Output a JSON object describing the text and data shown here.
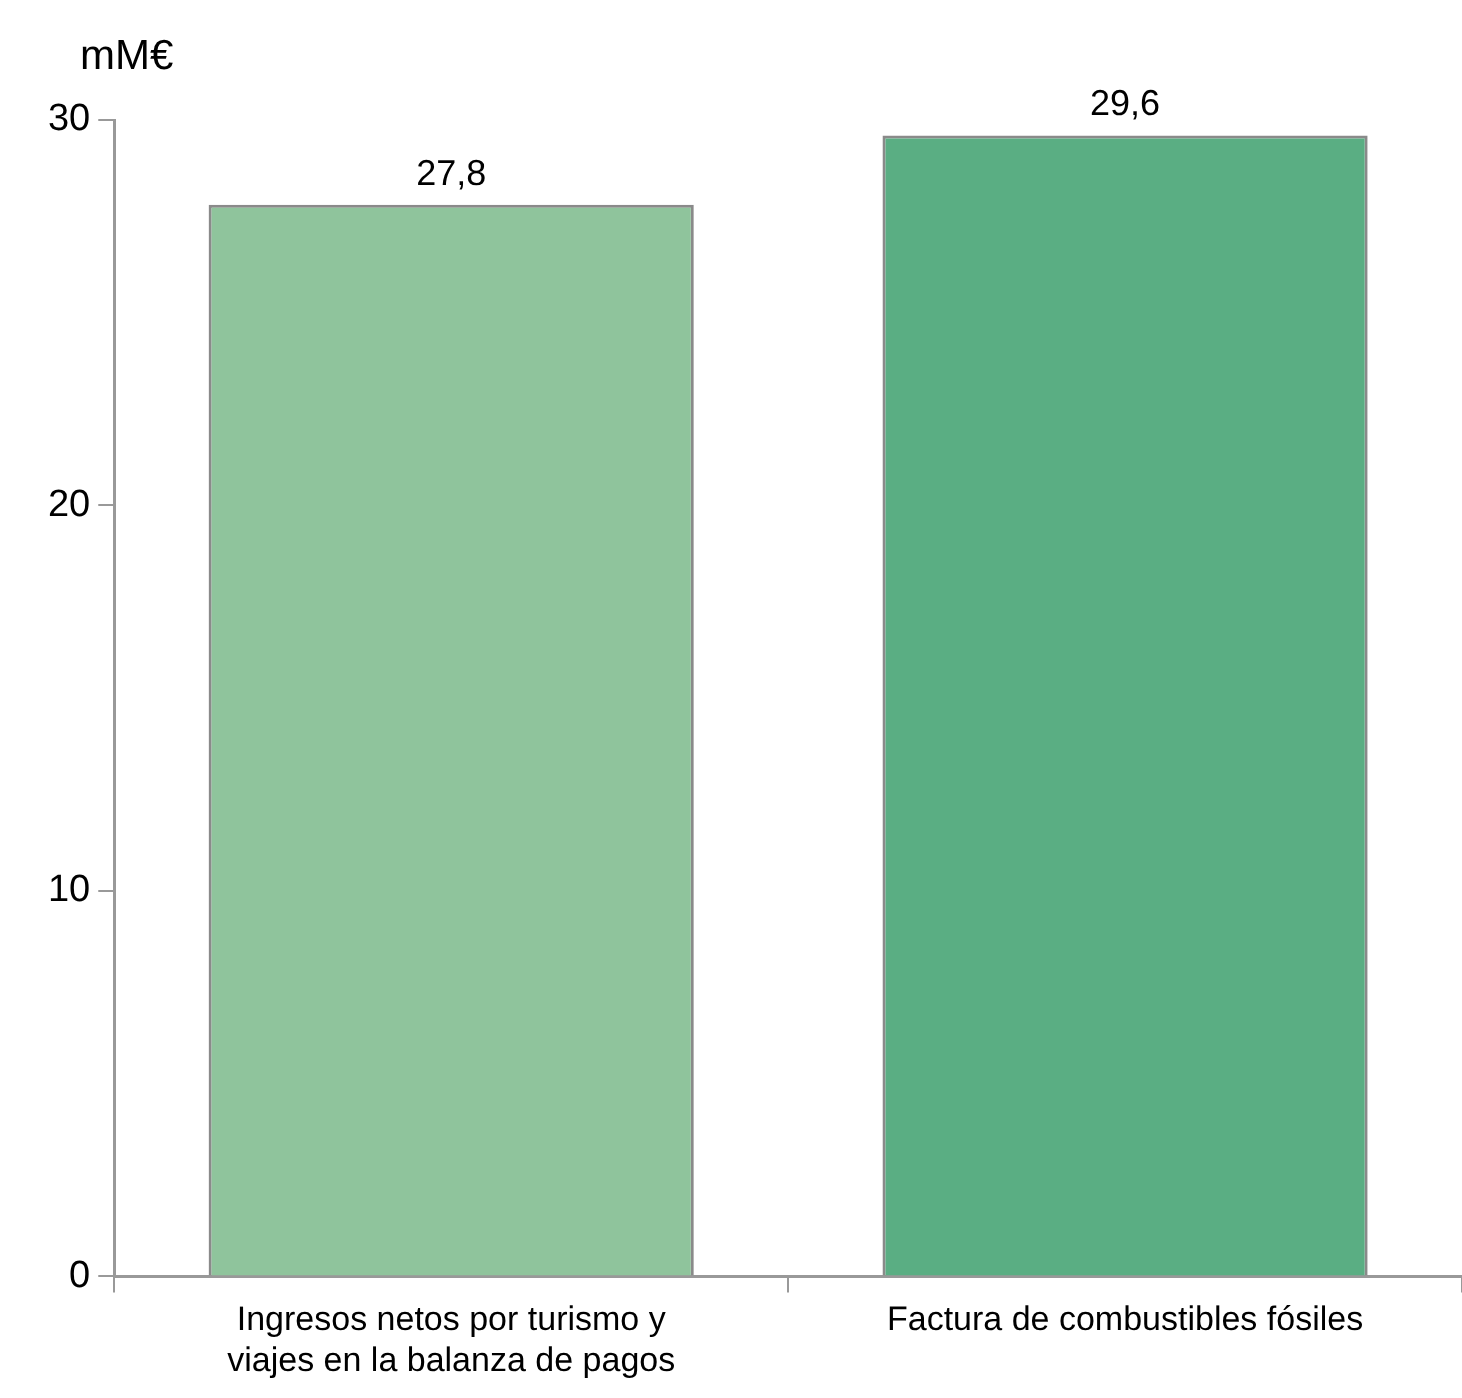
{
  "chart_data": {
    "type": "bar",
    "ylabel": "mM€",
    "categories": [
      "Ingresos netos por turismo y viajes en la balanza de pagos",
      "Factura de combustibles fósiles"
    ],
    "values": [
      27.8,
      29.6
    ],
    "colors": [
      "#8fc49c",
      "#5aae83"
    ],
    "value_labels": [
      "27,8",
      "29,6"
    ],
    "ylim": [
      0,
      30
    ],
    "yticks": [
      0,
      10,
      20,
      30
    ],
    "grid": false,
    "legend": false
  }
}
